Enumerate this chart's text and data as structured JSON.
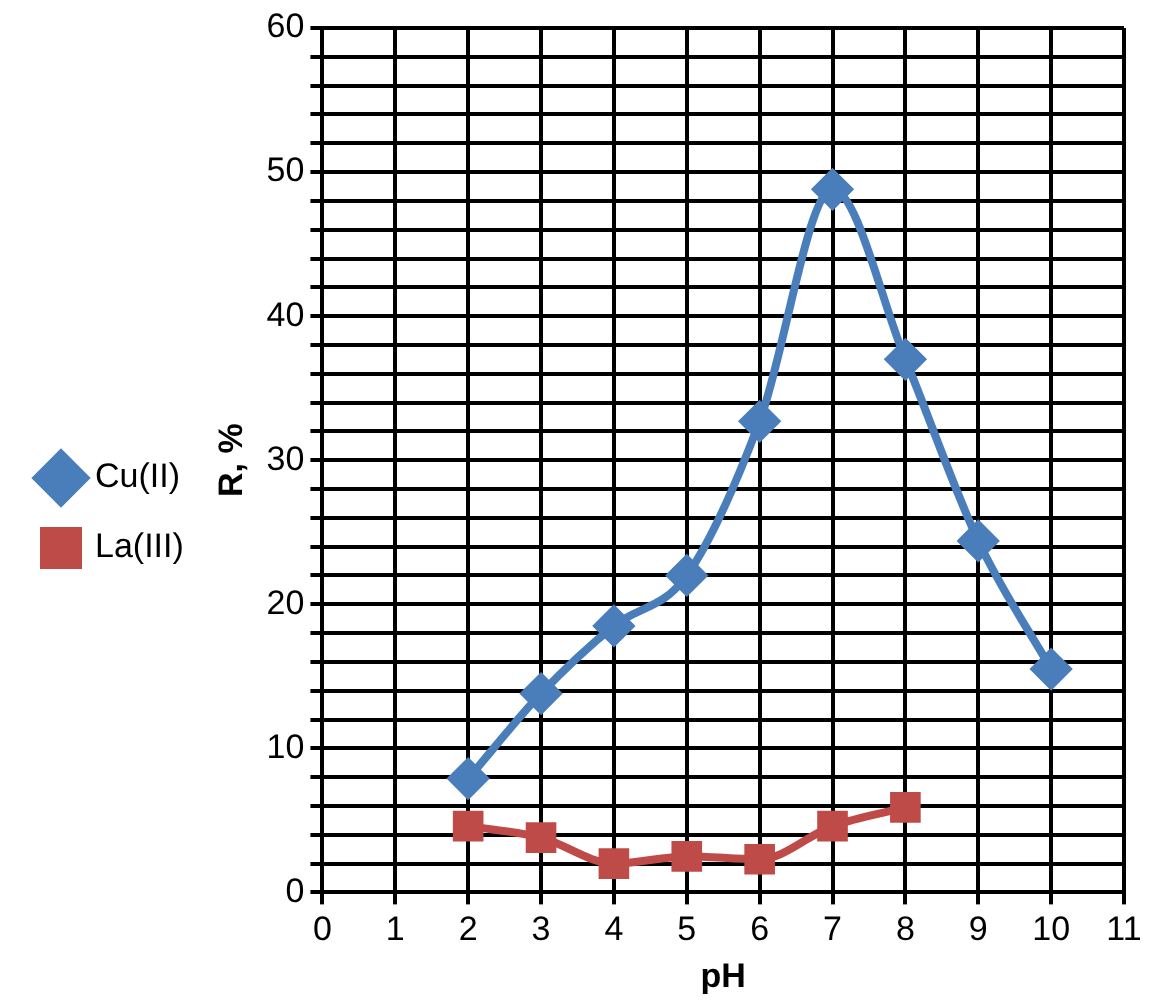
{
  "chart_data": {
    "type": "line",
    "xlabel": "pH",
    "ylabel": "R, %",
    "xlim": [
      0,
      11
    ],
    "xticks": [
      0,
      1,
      2,
      3,
      4,
      5,
      6,
      7,
      8,
      9,
      10,
      11
    ],
    "ylim": [
      0,
      60
    ],
    "yticks": [
      0,
      {
        "value": 2,
        "label": null
      },
      {
        "value": 4,
        "label": null
      },
      {
        "value": 6,
        "label": null
      },
      {
        "value": 8,
        "label": null
      },
      10,
      {
        "value": 12,
        "label": null
      },
      {
        "value": 14,
        "label": null
      },
      {
        "value": 16,
        "label": null
      },
      {
        "value": 18,
        "label": null
      },
      20,
      {
        "value": 22,
        "label": null
      },
      {
        "value": 24,
        "label": null
      },
      {
        "value": 26,
        "label": null
      },
      {
        "value": 28,
        "label": null
      },
      30,
      {
        "value": 32,
        "label": null
      },
      {
        "value": 34,
        "label": null
      },
      {
        "value": 36,
        "label": null
      },
      {
        "value": 38,
        "label": null
      },
      40,
      {
        "value": 42,
        "label": null
      },
      {
        "value": 44,
        "label": null
      },
      {
        "value": 46,
        "label": null
      },
      {
        "value": 48,
        "label": null
      },
      50,
      {
        "value": 52,
        "label": null
      },
      {
        "value": 54,
        "label": null
      },
      {
        "value": 56,
        "label": null
      },
      {
        "value": 58,
        "label": null
      },
      60
    ],
    "grid": true,
    "legend": "left",
    "series": [
      {
        "name": "Cu(II)",
        "color": "#4a7ebb",
        "marker": "diamond",
        "x": [
          2,
          3,
          4,
          5,
          6,
          7,
          8,
          9,
          10
        ],
        "values": [
          7.9,
          13.8,
          18.5,
          22,
          32.7,
          48.8,
          37,
          24.4,
          15.5
        ]
      },
      {
        "name": "La(III)",
        "color": "#be4b48",
        "marker": "square",
        "x": [
          2,
          3,
          4,
          5,
          6,
          7,
          8
        ],
        "values": [
          4.6,
          3.8,
          2,
          2.5,
          2.3,
          4.6,
          5.9
        ]
      }
    ]
  }
}
